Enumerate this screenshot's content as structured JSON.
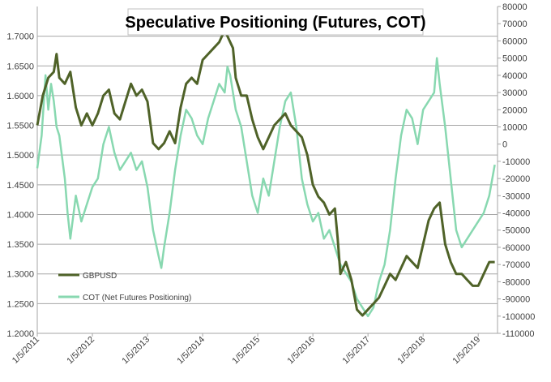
{
  "chart_data": {
    "type": "line",
    "title": "Speculative Positioning (Futures, COT)",
    "x_tick_labels": [
      "1/5/2011",
      "1/5/2012",
      "1/5/2013",
      "1/5/2014",
      "1/5/2015",
      "1/5/2016",
      "1/5/2017",
      "1/5/2018",
      "1/5/2019"
    ],
    "x_range": [
      2011.0,
      2019.35
    ],
    "left_axis": {
      "series": "GBPUSD",
      "ylim": [
        1.2,
        1.75
      ],
      "tick_labels": [
        "1.2000",
        "1.2500",
        "1.3000",
        "1.3500",
        "1.4000",
        "1.4500",
        "1.5000",
        "1.5500",
        "1.6000",
        "1.6500",
        "1.7000"
      ],
      "tick_values": [
        1.2,
        1.25,
        1.3,
        1.35,
        1.4,
        1.45,
        1.5,
        1.55,
        1.6,
        1.65,
        1.7
      ]
    },
    "right_axis": {
      "series": "COT (Net Futures Positioning)",
      "ylim": [
        -110000,
        80000
      ],
      "tick_labels": [
        "80000",
        "70000",
        "60000",
        "50000",
        "40000",
        "30000",
        "20000",
        "10000",
        "0",
        "-10000",
        "-20000",
        "-30000",
        "-40000",
        "-50000",
        "-60000",
        "-70000",
        "-80000",
        "-90000",
        "-100000",
        "-110000"
      ],
      "tick_values": [
        80000,
        70000,
        60000,
        50000,
        40000,
        30000,
        20000,
        10000,
        0,
        -10000,
        -20000,
        -30000,
        -40000,
        -50000,
        -60000,
        -70000,
        -80000,
        -90000,
        -100000,
        -110000
      ]
    },
    "legend": {
      "placement": "bottom-left",
      "entries": [
        "GBPUSD",
        "COT (Net Futures Positioning)"
      ]
    },
    "grid": true,
    "series": [
      {
        "name": "GBPUSD",
        "color": "#4f6228",
        "axis": "left",
        "x": [
          2011.0,
          2011.1,
          2011.2,
          2011.3,
          2011.35,
          2011.4,
          2011.5,
          2011.6,
          2011.7,
          2011.8,
          2011.9,
          2012.0,
          2012.1,
          2012.2,
          2012.3,
          2012.4,
          2012.5,
          2012.6,
          2012.7,
          2012.8,
          2012.9,
          2013.0,
          2013.1,
          2013.2,
          2013.3,
          2013.4,
          2013.5,
          2013.6,
          2013.7,
          2013.8,
          2013.9,
          2014.0,
          2014.1,
          2014.2,
          2014.3,
          2014.4,
          2014.5,
          2014.55,
          2014.6,
          2014.7,
          2014.8,
          2014.9,
          2015.0,
          2015.1,
          2015.2,
          2015.3,
          2015.4,
          2015.5,
          2015.6,
          2015.7,
          2015.8,
          2015.9,
          2016.0,
          2016.1,
          2016.2,
          2016.3,
          2016.4,
          2016.45,
          2016.5,
          2016.6,
          2016.7,
          2016.8,
          2016.9,
          2017.0,
          2017.1,
          2017.2,
          2017.3,
          2017.4,
          2017.5,
          2017.6,
          2017.7,
          2017.8,
          2017.9,
          2018.0,
          2018.1,
          2018.2,
          2018.3,
          2018.4,
          2018.5,
          2018.6,
          2018.7,
          2018.8,
          2018.9,
          2019.0,
          2019.1,
          2019.2,
          2019.3
        ],
        "values": [
          1.55,
          1.6,
          1.63,
          1.64,
          1.67,
          1.63,
          1.62,
          1.64,
          1.58,
          1.55,
          1.57,
          1.55,
          1.57,
          1.6,
          1.61,
          1.57,
          1.56,
          1.59,
          1.62,
          1.6,
          1.61,
          1.59,
          1.52,
          1.51,
          1.52,
          1.54,
          1.52,
          1.58,
          1.62,
          1.63,
          1.62,
          1.66,
          1.67,
          1.68,
          1.69,
          1.71,
          1.69,
          1.68,
          1.63,
          1.6,
          1.6,
          1.56,
          1.53,
          1.51,
          1.53,
          1.55,
          1.56,
          1.57,
          1.55,
          1.54,
          1.53,
          1.5,
          1.45,
          1.43,
          1.42,
          1.4,
          1.41,
          1.36,
          1.3,
          1.32,
          1.29,
          1.24,
          1.23,
          1.24,
          1.25,
          1.26,
          1.28,
          1.3,
          1.29,
          1.31,
          1.33,
          1.32,
          1.31,
          1.35,
          1.39,
          1.41,
          1.42,
          1.35,
          1.32,
          1.3,
          1.3,
          1.29,
          1.28,
          1.28,
          1.3,
          1.32,
          1.32
        ]
      },
      {
        "name": "COT (Net Futures Positioning)",
        "color": "#88d8b0",
        "axis": "right",
        "x": [
          2011.0,
          2011.08,
          2011.15,
          2011.2,
          2011.25,
          2011.3,
          2011.35,
          2011.4,
          2011.5,
          2011.55,
          2011.6,
          2011.7,
          2011.8,
          2011.9,
          2012.0,
          2012.1,
          2012.2,
          2012.3,
          2012.4,
          2012.5,
          2012.6,
          2012.7,
          2012.8,
          2012.9,
          2013.0,
          2013.1,
          2013.2,
          2013.25,
          2013.3,
          2013.4,
          2013.5,
          2013.6,
          2013.7,
          2013.8,
          2013.9,
          2014.0,
          2014.1,
          2014.2,
          2014.3,
          2014.4,
          2014.45,
          2014.5,
          2014.6,
          2014.7,
          2014.8,
          2014.9,
          2015.0,
          2015.1,
          2015.2,
          2015.3,
          2015.4,
          2015.5,
          2015.6,
          2015.7,
          2015.8,
          2015.9,
          2016.0,
          2016.1,
          2016.2,
          2016.3,
          2016.4,
          2016.5,
          2016.6,
          2016.7,
          2016.8,
          2016.9,
          2017.0,
          2017.1,
          2017.2,
          2017.3,
          2017.4,
          2017.5,
          2017.6,
          2017.7,
          2017.8,
          2017.9,
          2018.0,
          2018.1,
          2018.2,
          2018.25,
          2018.3,
          2018.4,
          2018.5,
          2018.6,
          2018.7,
          2018.8,
          2018.9,
          2019.0,
          2019.1,
          2019.2,
          2019.3
        ],
        "values": [
          -14000,
          5000,
          40000,
          20000,
          35000,
          25000,
          10000,
          5000,
          -20000,
          -40000,
          -55000,
          -30000,
          -45000,
          -35000,
          -25000,
          -20000,
          0,
          10000,
          -5000,
          -15000,
          -10000,
          -5000,
          -15000,
          -10000,
          -25000,
          -50000,
          -65000,
          -72000,
          -60000,
          -40000,
          -15000,
          5000,
          20000,
          15000,
          5000,
          0,
          15000,
          25000,
          35000,
          30000,
          45000,
          40000,
          20000,
          10000,
          -10000,
          -30000,
          -40000,
          -20000,
          -30000,
          -10000,
          10000,
          25000,
          30000,
          10000,
          -20000,
          -35000,
          -45000,
          -40000,
          -55000,
          -50000,
          -60000,
          -70000,
          -75000,
          -80000,
          -90000,
          -95000,
          -100000,
          -95000,
          -80000,
          -70000,
          -50000,
          -20000,
          5000,
          20000,
          15000,
          0,
          20000,
          25000,
          30000,
          50000,
          35000,
          10000,
          -20000,
          -50000,
          -60000,
          -55000,
          -50000,
          -45000,
          -40000,
          -30000,
          -12000
        ]
      }
    ]
  }
}
